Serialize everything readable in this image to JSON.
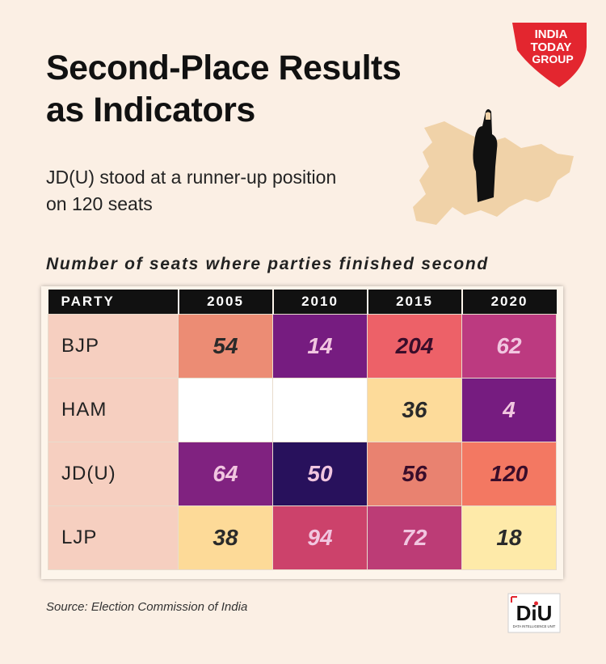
{
  "header": {
    "title": "Second-Place Results as Indicators",
    "subtitle": "JD(U) stood at a runner-up position on 120 seats",
    "logo_lines": [
      "INDIA",
      "TODAY",
      "GROUP"
    ]
  },
  "chart_data": {
    "type": "table",
    "title": "Number of seats where parties finished second",
    "columns": [
      "PARTY",
      "2005",
      "2010",
      "2015",
      "2020"
    ],
    "rows": [
      {
        "party": "BJP",
        "values": [
          54,
          14,
          204,
          62
        ]
      },
      {
        "party": "HAM",
        "values": [
          null,
          null,
          36,
          4
        ]
      },
      {
        "party": "JD(U)",
        "values": [
          64,
          50,
          56,
          120
        ]
      },
      {
        "party": "LJP",
        "values": [
          38,
          94,
          72,
          18
        ]
      }
    ]
  },
  "footer": {
    "source": "Source: Election Commission of India",
    "brand": "DiU",
    "brand_sub": "DATA INTELLIGENCE UNIT"
  },
  "colors": {
    "background": "#fbefe4",
    "party_cell": "#f6cfc0",
    "header_bg": "#111111",
    "empty_cell": "#ffffff",
    "brand_red": "#e3262f",
    "map": "#f0d2a8"
  }
}
